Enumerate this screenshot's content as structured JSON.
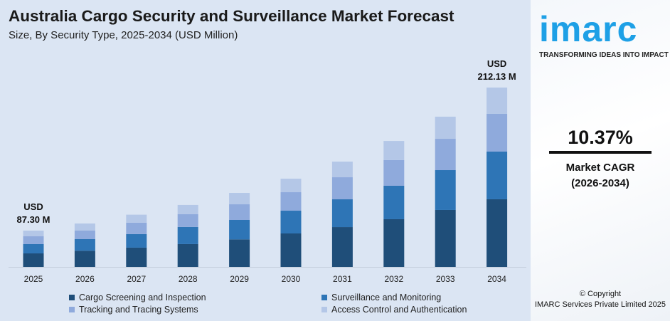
{
  "title": "Australia Cargo Security and Surveillance Market Forecast",
  "subtitle": "Size, By Security Type, 2025-2034 (USD Million)",
  "chart_data": {
    "type": "bar",
    "stacked": true,
    "categories": [
      "2025",
      "2026",
      "2027",
      "2028",
      "2029",
      "2030",
      "2031",
      "2032",
      "2033",
      "2034"
    ],
    "series": [
      {
        "name": "Cargo Screening and Inspection",
        "color": "#1f4e79",
        "values": [
          32.5,
          34.8,
          37.3,
          40.4,
          44.7,
          50.3,
          55.8,
          62.7,
          70.8,
          80.0
        ]
      },
      {
        "name": "Surveillance and Monitoring",
        "color": "#2e75b6",
        "values": [
          22.3,
          25.0,
          26.2,
          30.3,
          31.6,
          34.2,
          38.9,
          44.0,
          49.5,
          56.4
        ]
      },
      {
        "name": "Tracking and Tracing Systems",
        "color": "#8faadc",
        "values": [
          18.8,
          18.4,
          22.1,
          22.7,
          25.4,
          27.8,
          30.9,
          33.7,
          38.9,
          44.6
        ]
      },
      {
        "name": "Access Control and Authentication",
        "color": "#b4c7e7",
        "values": [
          13.7,
          15.3,
          15.6,
          16.3,
          18.5,
          20.3,
          21.9,
          25.1,
          27.5,
          31.13
        ]
      }
    ],
    "annotations": [
      {
        "category": "2025",
        "line1": "USD",
        "line2": "87.30 M"
      },
      {
        "category": "2034",
        "line1": "USD",
        "line2": "212.13 M"
      }
    ],
    "grid": false,
    "legend_position": "bottom"
  },
  "brand": {
    "logo": "imarc",
    "tagline": "TRANSFORMING IDEAS INTO IMPACT",
    "color": "#1ea0e6"
  },
  "cagr": {
    "value": "10.37%",
    "label": "Market CAGR",
    "period": "(2026-2034)"
  },
  "copyright": {
    "line1": "© Copyright",
    "line2": "IMARC Services Private Limited 2025"
  }
}
